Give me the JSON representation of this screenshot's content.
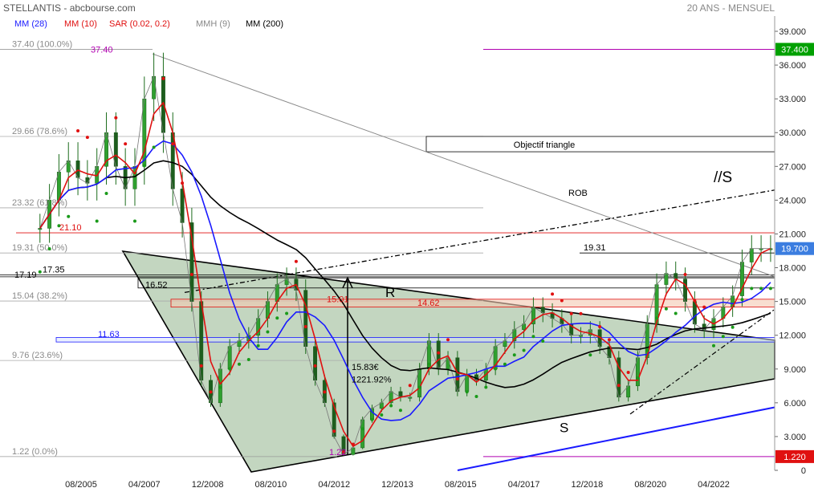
{
  "header": {
    "title": "STELLANTIS - abcbourse.com",
    "period": "20 ANS - MENSUEL"
  },
  "legend": [
    {
      "label": "MM (28)",
      "color": "#1a1aff"
    },
    {
      "label": "MM (10)",
      "color": "#e01010"
    },
    {
      "label": "SAR (0.02, 0.2)",
      "color": "#e01010"
    },
    {
      "label": "MMH (9)",
      "color": "#888888"
    },
    {
      "label": "MM (200)",
      "color": "#000000"
    }
  ],
  "chart_data": {
    "type": "line",
    "title": "STELLANTIS - abcbourse.com",
    "subtitle": "20 ANS - MENSUEL",
    "ylim": [
      0,
      39.5
    ],
    "xlim": [
      "2004-02",
      "2023-11"
    ],
    "y_ticks": [
      "0",
      "3.000",
      "6.000",
      "9.000",
      "12.000",
      "15.000",
      "18.000",
      "21.000",
      "24.000",
      "27.000",
      "30.000",
      "33.000",
      "36.000",
      "39.000"
    ],
    "x_ticks": [
      "08/2005",
      "04/2007",
      "12/2008",
      "08/2010",
      "04/2012",
      "12/2013",
      "08/2015",
      "04/2017",
      "12/2018",
      "08/2020",
      "04/2022"
    ],
    "price_markers": [
      {
        "label": "37.400",
        "value": 37.4,
        "color": "#00a000"
      },
      {
        "label": "19.700",
        "value": 19.7,
        "color": "#3b7de0"
      },
      {
        "label": "1.220",
        "value": 1.22,
        "color": "#e01010"
      }
    ],
    "fibonacci": [
      {
        "label": "37.40 (100.0%)",
        "value": 37.4
      },
      {
        "label": "29.66 (78.6%)",
        "value": 29.66
      },
      {
        "label": "23.32 (61.8%)",
        "value": 23.32
      },
      {
        "label": "19.31 (50.0%)",
        "value": 19.31
      },
      {
        "label": "15.04 (38.2%)",
        "value": 15.04
      },
      {
        "label": "9.76 (23.6%)",
        "value": 9.76
      },
      {
        "label": "1.22 (0.0%)",
        "value": 1.22
      }
    ],
    "annotations": [
      "37.40",
      "21.10",
      "19.31",
      "17.35",
      "17.19",
      "16.52",
      "15.01",
      "14.62",
      "11.63",
      "1.22",
      "15.83€",
      "1221.92%",
      "Objectif triangle",
      "ROB",
      "//S",
      "R",
      "S"
    ],
    "series": [
      {
        "name": "Prix",
        "color": "#2a8a2a",
        "x": [
          "2004-07",
          "2004-10",
          "2005-01",
          "2005-04",
          "2005-07",
          "2005-10",
          "2006-01",
          "2006-04",
          "2006-07",
          "2006-10",
          "2007-01",
          "2007-04",
          "2007-07",
          "2007-10",
          "2008-01",
          "2008-04",
          "2008-07",
          "2008-10",
          "2009-01",
          "2009-04",
          "2009-07",
          "2009-10",
          "2010-01",
          "2010-04",
          "2010-07",
          "2010-10",
          "2011-01",
          "2011-04",
          "2011-07",
          "2011-10",
          "2012-01",
          "2012-04",
          "2012-07",
          "2012-10",
          "2013-01",
          "2013-04",
          "2013-07",
          "2013-10",
          "2014-01",
          "2014-04",
          "2014-07",
          "2014-10",
          "2015-01",
          "2015-04",
          "2015-07",
          "2015-10",
          "2016-01",
          "2016-04",
          "2016-07",
          "2016-10",
          "2017-01",
          "2017-04",
          "2017-07",
          "2017-10",
          "2018-01",
          "2018-04",
          "2018-07",
          "2018-10",
          "2019-01",
          "2019-04",
          "2019-07",
          "2019-10",
          "2020-01",
          "2020-04",
          "2020-07",
          "2020-10",
          "2021-01",
          "2021-04",
          "2021-07",
          "2021-10",
          "2022-01",
          "2022-04",
          "2022-07",
          "2022-10",
          "2023-01",
          "2023-04",
          "2023-07",
          "2023-10"
        ],
        "values": [
          21.5,
          24.0,
          26.5,
          27.5,
          26.0,
          25.5,
          27.0,
          30.0,
          27.0,
          25.0,
          27.0,
          33.0,
          35.0,
          30.0,
          25.0,
          22.0,
          15.0,
          8.0,
          6.0,
          9.0,
          11.0,
          11.5,
          12.0,
          13.5,
          15.0,
          16.5,
          17.0,
          16.0,
          11.0,
          8.0,
          6.0,
          3.0,
          1.4,
          2.0,
          4.5,
          5.5,
          6.0,
          7.0,
          6.5,
          6.5,
          9.0,
          11.5,
          9.0,
          10.0,
          7.0,
          8.5,
          8.0,
          9.0,
          11.0,
          11.5,
          12.5,
          13.0,
          14.5,
          14.0,
          13.5,
          13.0,
          12.0,
          12.0,
          12.5,
          11.0,
          10.0,
          6.5,
          7.5,
          10.0,
          13.0,
          16.5,
          17.5,
          17.0,
          15.0,
          13.0,
          12.5,
          13.5,
          14.5,
          15.5,
          18.5,
          19.7,
          19.7,
          19.7
        ]
      },
      {
        "name": "MM (10)",
        "color": "#e01010"
      },
      {
        "name": "MM (28)",
        "color": "#1a1aff"
      },
      {
        "name": "MM (200)",
        "color": "#000000"
      },
      {
        "name": "SAR (0.02, 0.2)",
        "color": "#e01010"
      }
    ]
  }
}
